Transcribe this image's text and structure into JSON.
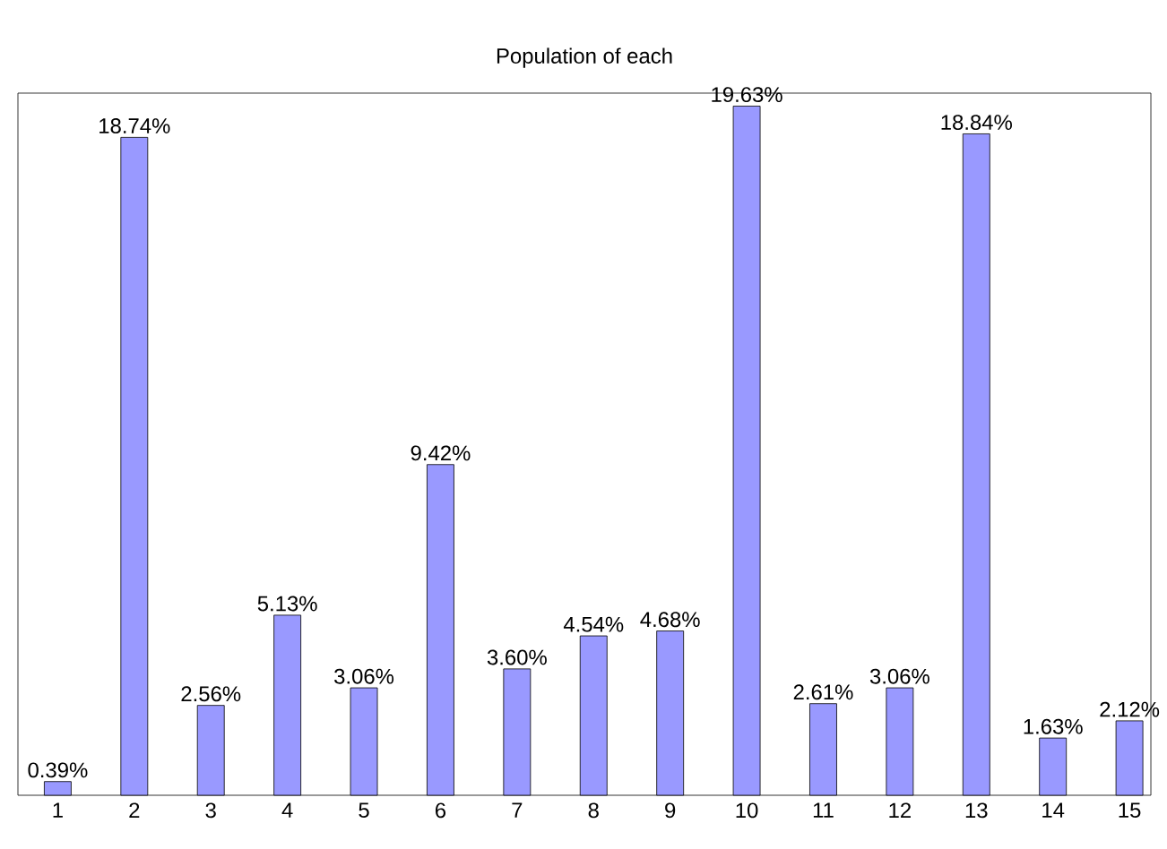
{
  "chart_data": {
    "type": "bar",
    "title": "Population of each",
    "categories": [
      "1",
      "2",
      "3",
      "4",
      "5",
      "6",
      "7",
      "8",
      "9",
      "10",
      "11",
      "12",
      "13",
      "14",
      "15"
    ],
    "values": [
      0.39,
      18.74,
      2.56,
      5.13,
      3.06,
      9.42,
      3.6,
      4.54,
      4.68,
      19.63,
      2.61,
      3.06,
      18.84,
      1.63,
      2.12
    ],
    "value_labels": [
      "0.39%",
      "18.74%",
      "2.56%",
      "5.13%",
      "3.06%",
      "9.42%",
      "3.60%",
      "4.54%",
      "4.68%",
      "19.63%",
      "2.61%",
      "3.06%",
      "18.84%",
      "1.63%",
      "2.12%"
    ],
    "color": "#9999ff",
    "ylim": [
      0,
      20
    ],
    "tick_labels": "x"
  }
}
